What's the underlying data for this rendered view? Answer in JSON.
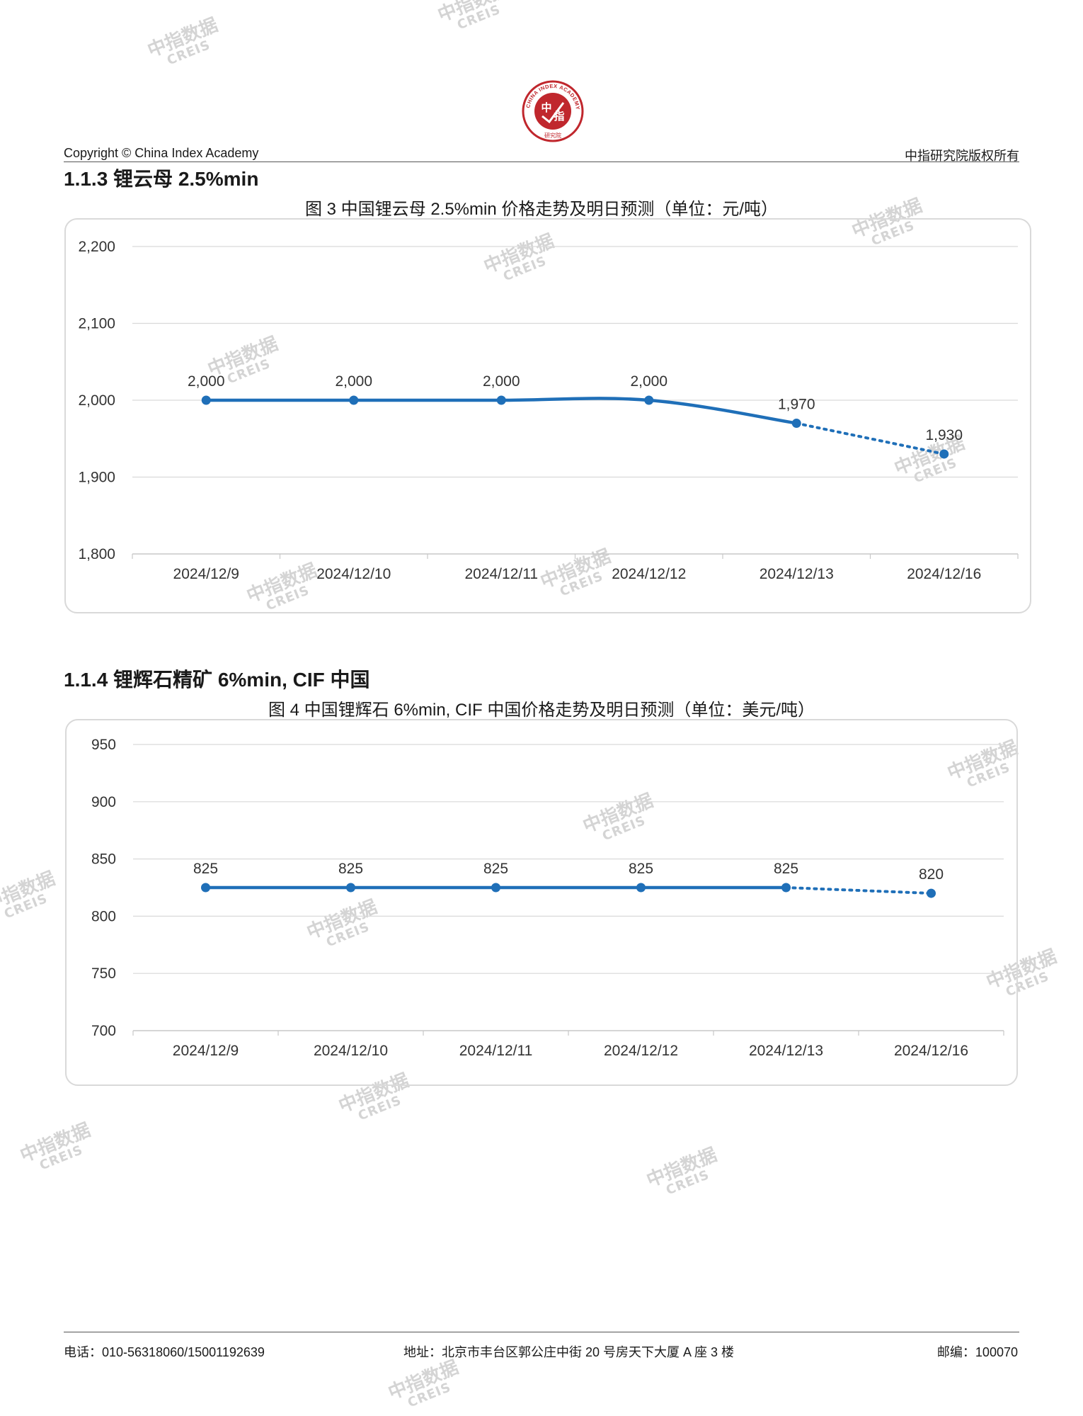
{
  "header": {
    "copyright": "Copyright © China Index Academy",
    "rights": "中指研究院版权所有",
    "logo": {
      "top_char": "中",
      "bottom_char": "指",
      "ring_text": "CHINA INDEX ACADEMY",
      "sub_text": "研究院"
    }
  },
  "watermark": {
    "line1": "中指数据",
    "line2": "CREIS"
  },
  "sections": [
    {
      "heading": "1.1.3 锂云母 2.5%min",
      "caption": "图 3 中国锂云母 2.5%min 价格走势及明日预测（单位：元/吨）"
    },
    {
      "heading": "1.1.4 锂辉石精矿 6%min, CIF 中国",
      "caption": "图 4 中国锂辉石 6%min, CIF 中国价格走势及明日预测（单位：美元/吨）"
    }
  ],
  "chart_data": [
    {
      "type": "line",
      "title": "",
      "x": [
        "2024/12/9",
        "2024/12/10",
        "2024/12/11",
        "2024/12/12",
        "2024/12/13",
        "2024/12/16"
      ],
      "series": [
        {
          "values": [
            2000,
            2000,
            2000,
            2000,
            1970,
            1930
          ]
        }
      ],
      "data_labels": [
        "2,000",
        "2,000",
        "2,000",
        "2,000",
        "1,970",
        "1,930"
      ],
      "forecast_from_index": 4,
      "yticks": [
        "1,800",
        "1,900",
        "2,000",
        "2,100",
        "2,200"
      ],
      "ylim": [
        1800,
        2200
      ],
      "grid": true,
      "legend": "none",
      "color": "#1f6fb8"
    },
    {
      "type": "line",
      "title": "",
      "x": [
        "2024/12/9",
        "2024/12/10",
        "2024/12/11",
        "2024/12/12",
        "2024/12/13",
        "2024/12/16"
      ],
      "series": [
        {
          "values": [
            825,
            825,
            825,
            825,
            825,
            820
          ]
        }
      ],
      "data_labels": [
        "825",
        "825",
        "825",
        "825",
        "825",
        "820"
      ],
      "forecast_from_index": 4,
      "yticks": [
        "700",
        "750",
        "800",
        "850",
        "900",
        "950"
      ],
      "ylim": [
        700,
        950
      ],
      "grid": true,
      "legend": "none",
      "color": "#1f6fb8"
    }
  ],
  "footer": {
    "phone": "电话：010-56318060/15001192639",
    "address": "地址：北京市丰台区郭公庄中街 20 号房天下大厦 A 座 3 楼",
    "postcode": "邮编：100070"
  }
}
